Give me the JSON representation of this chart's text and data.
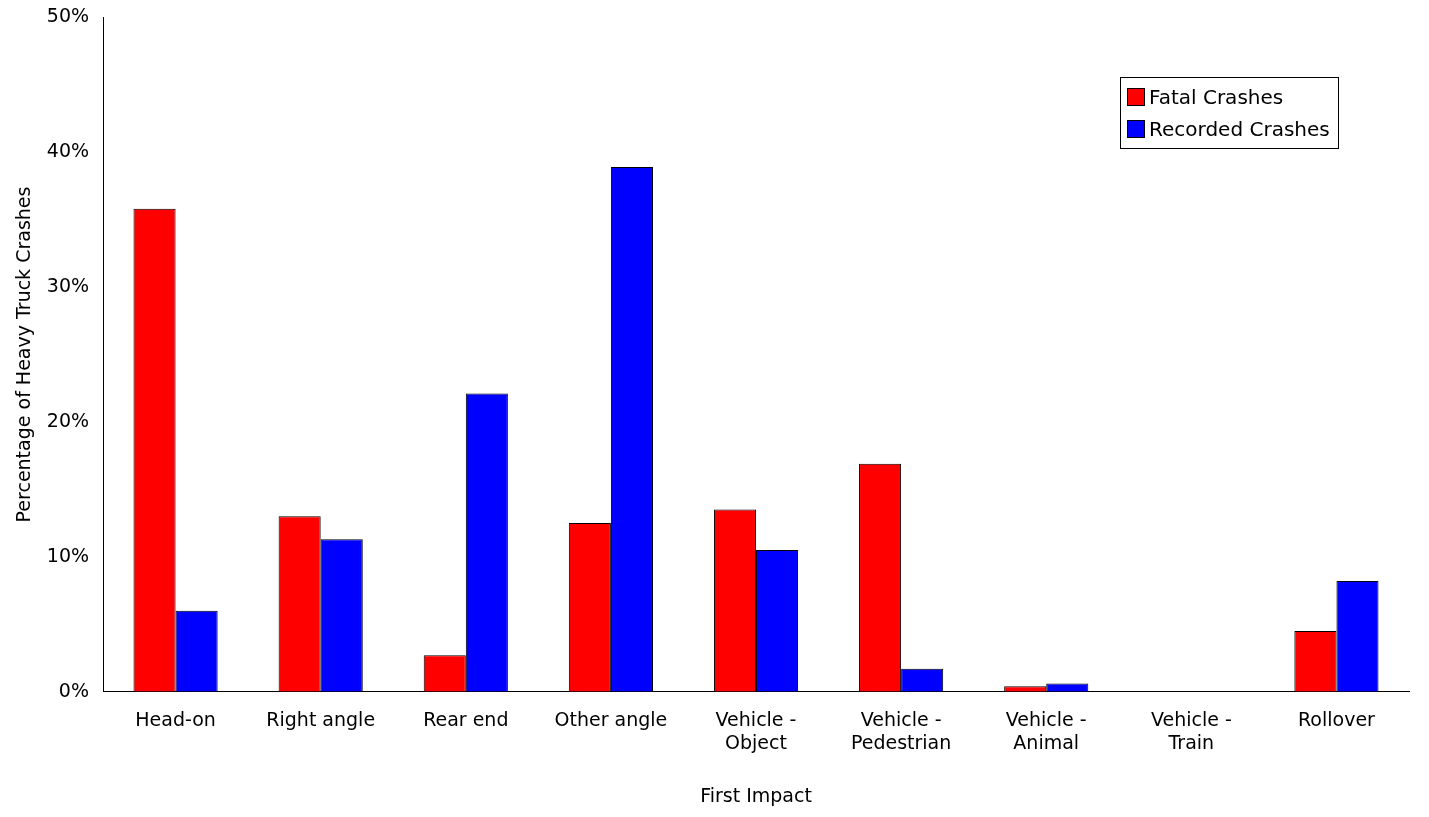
{
  "chart_data": {
    "type": "bar",
    "xlabel": "First Impact",
    "ylabel": "Percentage of Heavy Truck Crashes",
    "categories": [
      "Head-on",
      "Right angle",
      "Rear end",
      "Other angle",
      "Vehicle - Object",
      "Vehicle - Pedestrian",
      "Vehicle - Animal",
      "Vehicle - Train",
      "Rollover"
    ],
    "series": [
      {
        "name": "Fatal Crashes",
        "color": "#ff0000",
        "values": [
          35.8,
          13.0,
          2.7,
          12.5,
          13.5,
          16.9,
          0.4,
          0,
          4.5
        ]
      },
      {
        "name": "Recorded Crashes",
        "color": "#0000ff",
        "values": [
          6.0,
          11.3,
          22.1,
          38.9,
          10.5,
          1.7,
          0.6,
          0,
          8.2
        ]
      }
    ],
    "ylim": [
      0,
      50
    ],
    "yticks": [
      {
        "value": 0,
        "label": "0%"
      },
      {
        "value": 10,
        "label": "10%"
      },
      {
        "value": 20,
        "label": "20%"
      },
      {
        "value": 30,
        "label": "30%"
      },
      {
        "value": 40,
        "label": "40%"
      },
      {
        "value": 50,
        "label": "50%"
      }
    ],
    "grid": false,
    "legend": "top right"
  }
}
